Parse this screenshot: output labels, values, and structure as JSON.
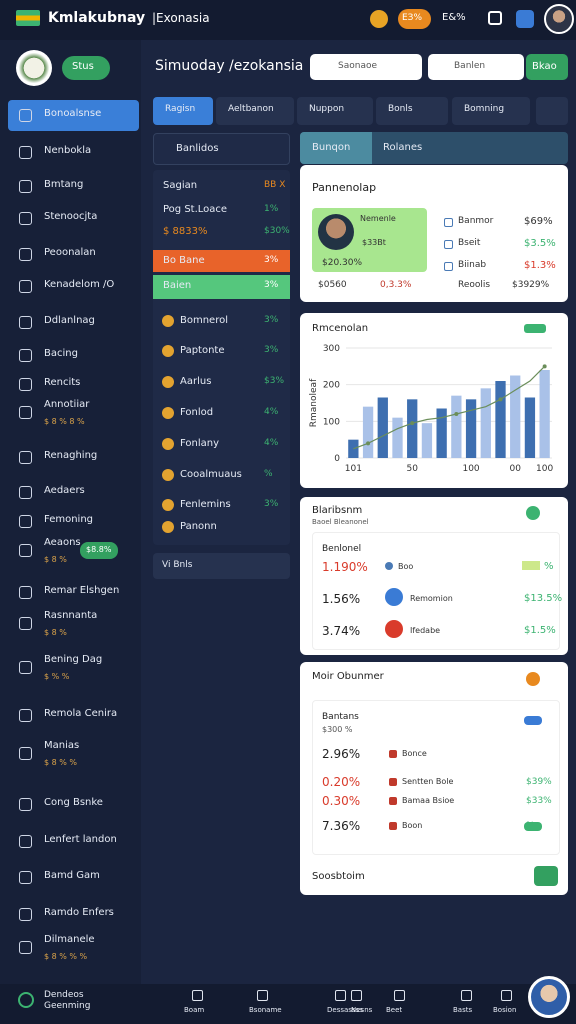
{
  "header": {
    "title": "Kmlakubnay",
    "subtitle": "|Exonasia",
    "badge": "EЗ%",
    "stat": "E&%"
  },
  "sidebar": {
    "button": "Stus",
    "items": [
      {
        "label": "Bonoalsnse"
      },
      {
        "label": "Nenbokla"
      },
      {
        "label": "Bmtang"
      },
      {
        "label": "Stenoocjta"
      },
      {
        "label": "Peoonalan"
      },
      {
        "label": "Kenadelom /O"
      },
      {
        "label": "Ddlanlnag"
      },
      {
        "label": "Bacing"
      },
      {
        "label": "Rencits"
      },
      {
        "label": "Annotiiar",
        "sub": "$ 8 % 8 %"
      },
      {
        "label": "Renaghing"
      },
      {
        "label": "Aedaers"
      },
      {
        "label": "Femoning"
      },
      {
        "label": "Aeaons",
        "sub": "$ 8 %",
        "badge": "$8.8%"
      },
      {
        "label": "Remar Elshgen"
      },
      {
        "label": "Rasnnanta",
        "sub": "$ 8 %"
      },
      {
        "label": "Bening Dag",
        "sub": "$ % %"
      },
      {
        "label": "Remola Cenira"
      },
      {
        "label": "Manias",
        "sub": "$ 8 % %"
      },
      {
        "label": "Cong Bsnke"
      },
      {
        "label": "Lenfert landon"
      },
      {
        "label": "Bamd Gam"
      },
      {
        "label": "Ramdo Enfers"
      },
      {
        "label": "Dilmanele",
        "sub": "$ 8 % % %"
      }
    ],
    "footer": "Dendeos Geenming"
  },
  "main": {
    "title": "Simuoday /ezokansia",
    "search1": "Saonaoe",
    "search2": "Banlen",
    "button": "Bkao",
    "tabs": [
      "Ragisn",
      "Aeltbanon",
      "Nuppon",
      "Bonls",
      "Bomning"
    ],
    "list": {
      "title": "Banlidos",
      "rows": [
        {
          "label": "Sagian",
          "value": "BB X"
        },
        {
          "label": "Pog St.Loace",
          "value": "1%"
        },
        {
          "label": "$ 8833%",
          "value": "$30%"
        },
        {
          "label": "Bo Bane",
          "value": "3%"
        },
        {
          "label": "Baien",
          "value": "3%"
        },
        {
          "label": "Bomnerol",
          "value": "3%"
        },
        {
          "label": "Paptonte",
          "value": "3%"
        },
        {
          "label": "Aarlus",
          "value": "$3%"
        },
        {
          "label": "Fonlod",
          "value": "4%"
        },
        {
          "label": "Fonlany",
          "value": "4%"
        },
        {
          "label": "Cooalmuaus",
          "value": "%"
        },
        {
          "label": "Fenlemins",
          "value": "3%"
        },
        {
          "label": "Panonn",
          "value": ""
        }
      ],
      "footer": "Vi Bnls"
    },
    "panel_tab": {
      "left": "Bunqon",
      "right": "Rolanes"
    }
  },
  "card1": {
    "title": "Pannenolap",
    "person": "Nemenle",
    "person_sub": "$33Bt",
    "person_value": "$20.30%",
    "rows": [
      {
        "label": "Banmor",
        "value": "$69%"
      },
      {
        "label": "Bseit",
        "value": "$3.5%"
      },
      {
        "label": "Biinab",
        "value": "$1.3%"
      }
    ],
    "foot": [
      "$0560",
      "0,3.3%",
      "Reoolis",
      "$3929%"
    ]
  },
  "chart_data": {
    "type": "bar",
    "title": "Rmcenolan",
    "ylabel": "Rmanoleaf",
    "categories": [
      "101",
      null,
      null,
      null,
      "50",
      null,
      null,
      null,
      "100",
      null,
      null,
      "00",
      null,
      "100"
    ],
    "values": [
      50,
      140,
      165,
      110,
      160,
      95,
      135,
      170,
      160,
      190,
      210,
      225,
      165,
      240
    ],
    "colors": [
      "#3e6fb0",
      "#a9c1e8",
      "#3e6fb0",
      "#a9c1e8",
      "#3e6fb0",
      "#a9c1e8",
      "#3e6fb0",
      "#a9c1e8",
      "#3e6fb0",
      "#a9c1e8",
      "#3e6fb0",
      "#a9c1e8",
      "#3e6fb0",
      "#a9c1e8"
    ],
    "line": {
      "color": "#6b8e5a",
      "values": [
        25,
        40,
        60,
        80,
        95,
        105,
        110,
        120,
        130,
        140,
        160,
        185,
        210,
        250
      ]
    },
    "ylim": [
      0,
      300
    ],
    "yticks": [
      0,
      100,
      200,
      300
    ]
  },
  "card3": {
    "title": "Blaribsnm",
    "sub": "Baoel Bleanonel",
    "inner": "Benlonel",
    "rows": [
      {
        "pct": "1.190%",
        "label": "Boo",
        "value": "%"
      },
      {
        "pct": "1.56%",
        "label": "Remomion",
        "value": "$13.5%"
      },
      {
        "pct": "3.74%",
        "label": "Ifedabe",
        "value": "$1.5%"
      }
    ]
  },
  "card4": {
    "title": "Moir Obunmer",
    "inner": "Bantans",
    "sub": "$300 %",
    "rows": [
      {
        "pct": "2.96%",
        "label": "Bonce",
        "value": ""
      },
      {
        "pct": "0.20%",
        "label": "Sentten Bole",
        "value": "$39%"
      },
      {
        "pct": "0.30%",
        "label": "Bamaa Bsioe",
        "value": "$33%"
      },
      {
        "pct": "7.36%",
        "label": "Boon",
        "value": "%"
      }
    ],
    "footer": "Soosbtoim"
  },
  "bottom_nav": [
    "Boam",
    "Bsoname",
    "Dessassss",
    "Nesns",
    "Beet",
    "Basts",
    "Bosion"
  ]
}
